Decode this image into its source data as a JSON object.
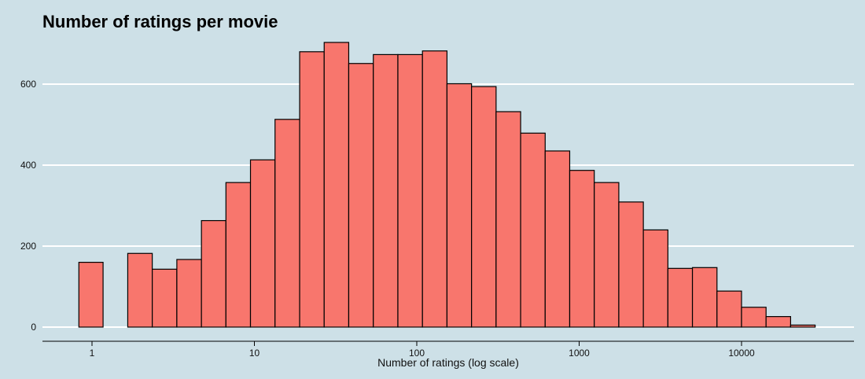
{
  "chart_data": {
    "type": "bar",
    "title": "Number of ratings per movie",
    "xlabel": "Number of ratings (log scale)",
    "ylabel": "",
    "x_scale": "log10",
    "x_ticks": [
      1,
      10,
      100,
      1000,
      10000
    ],
    "x_tick_labels": [
      "1",
      "10",
      "100",
      "1000",
      "10000"
    ],
    "y_ticks": [
      0,
      200,
      400,
      600
    ],
    "y_tick_labels": [
      "0",
      "200",
      "400",
      "600"
    ],
    "ylim": [
      0,
      700
    ],
    "grid": "horizontal",
    "bin_edges": [
      0.83,
      1.17,
      1.66,
      2.35,
      3.33,
      4.72,
      6.68,
      9.46,
      13.4,
      19.0,
      26.9,
      38.1,
      54.0,
      76.5,
      108.4,
      153.5,
      217.4,
      307.9,
      436.1,
      617.6,
      874.6,
      1238.8,
      1754.6,
      2485.0,
      3519.4,
      4984.4,
      7059.3,
      9997.6,
      14159.0,
      20053.0,
      28400.0
    ],
    "values": [
      160,
      0,
      182,
      143,
      167,
      263,
      357,
      413,
      513,
      680,
      703,
      651,
      673,
      673,
      682,
      601,
      594,
      532,
      479,
      435,
      387,
      357,
      309,
      240,
      145,
      147,
      89,
      49,
      26,
      5
    ],
    "colors": {
      "bar_fill": "#f8766d",
      "bar_stroke": "#000000",
      "grid": "#ffffff",
      "background": "#cde0e7",
      "axis": "#000000"
    }
  }
}
